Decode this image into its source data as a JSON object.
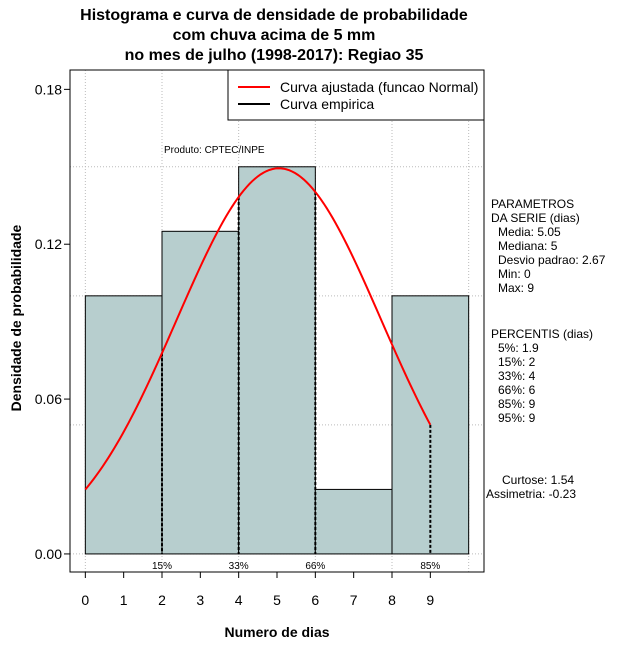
{
  "chart_data": {
    "type": "bar",
    "title": [
      "Histograma e curva de densidade de probabilidade",
      "com chuva acima de 5 mm",
      "no mes de julho (1998-2017): Regiao 35"
    ],
    "xlabel": "Numero de dias",
    "ylabel": "Densidade de probabilidade",
    "xlim": [
      -0.4,
      10.4
    ],
    "ylim": [
      -0.007,
      0.1875
    ],
    "x_ticks": [
      0,
      1,
      2,
      3,
      4,
      5,
      6,
      7,
      8,
      9
    ],
    "y_ticks": [
      0.0,
      0.06,
      0.12,
      0.18
    ],
    "y_tick_labels": [
      "0.00",
      "0.06",
      "0.12",
      "0.18"
    ],
    "grid": true,
    "grid_vertical_at": [
      0,
      2,
      4,
      6,
      8,
      10
    ],
    "grid_horizontal_at": [
      0.0,
      0.05,
      0.1,
      0.15
    ],
    "bins": [
      {
        "start": 0,
        "end": 2,
        "density": 0.1
      },
      {
        "start": 2,
        "end": 4,
        "density": 0.125
      },
      {
        "start": 4,
        "end": 6,
        "density": 0.15
      },
      {
        "start": 6,
        "end": 8,
        "density": 0.025
      },
      {
        "start": 8,
        "end": 10,
        "density": 0.1
      }
    ],
    "bar_color": "#b7cece",
    "fitted_curve": {
      "name": "Curva ajustada (funcao Normal)",
      "mean": 5.05,
      "sd": 2.67,
      "x_from": 0,
      "x_to": 9,
      "color": "#ff0000"
    },
    "empirical_curve": {
      "name": "Curva empirica",
      "color": "#000000"
    },
    "legend_position": "top-right",
    "percentile_lines": [
      {
        "x": 2,
        "label": "15%"
      },
      {
        "x": 4,
        "label": "33%"
      },
      {
        "x": 6,
        "label": "66%"
      },
      {
        "x": 9,
        "label": "85%"
      }
    ],
    "credit": "Produto: CPTEC/INPE"
  },
  "side_panel": {
    "params_title_1": "PARAMETROS",
    "params_title_2": "DA SERIE (dias)",
    "media": "Media: 5.05",
    "mediana": "Mediana: 5",
    "desvio": "Desvio padrao: 2.67",
    "min": "Min: 0",
    "max": "Max: 9",
    "perc_title": "PERCENTIS (dias)",
    "p5": "5%: 1.9",
    "p15": "15%: 2",
    "p33": "33%: 4",
    "p66": "66%: 6",
    "p85": "85%: 9",
    "p95": "95%: 9",
    "curtose": "Curtose: 1.54",
    "assimetria": "Assimetria: -0.23"
  }
}
